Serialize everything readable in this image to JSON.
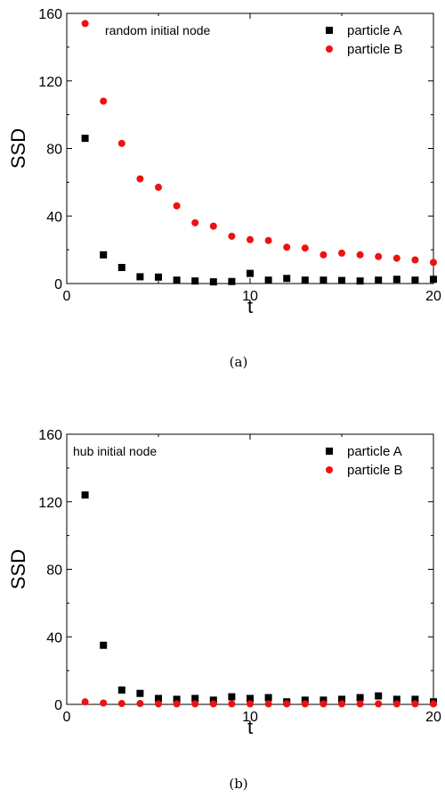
{
  "colors": {
    "particle_a": "#000000",
    "particle_b": "#ee1111",
    "axis": "#000000",
    "background": "#ffffff"
  },
  "chart_data": [
    {
      "type": "scatter",
      "caption": "(a)",
      "annotation": "random initial node",
      "xlabel": "t",
      "ylabel": "SSD",
      "xlim": [
        0,
        20
      ],
      "ylim": [
        0,
        160
      ],
      "xticks": [
        0,
        10,
        20
      ],
      "yticks": [
        0,
        40,
        80,
        120,
        160
      ],
      "grid": false,
      "legend_position": "top-right",
      "x": [
        1,
        2,
        3,
        4,
        5,
        6,
        7,
        8,
        9,
        10,
        11,
        12,
        13,
        14,
        15,
        16,
        17,
        18,
        19,
        20
      ],
      "series": [
        {
          "name": "particle A",
          "marker": "square",
          "color": "#000000",
          "values": [
            86,
            17,
            9.5,
            4,
            3.8,
            2,
            1.5,
            1,
            1.2,
            6,
            2,
            3,
            2,
            2,
            1.8,
            1.5,
            2,
            2.5,
            2,
            2.5
          ]
        },
        {
          "name": "particle B",
          "marker": "circle",
          "color": "#ee1111",
          "values": [
            154,
            108,
            83,
            62,
            57,
            46,
            36,
            34,
            28,
            26,
            25.5,
            21.5,
            21,
            17,
            18,
            17,
            16,
            15,
            14,
            12.5
          ]
        }
      ]
    },
    {
      "type": "scatter",
      "caption": "(b)",
      "annotation": "hub initial node",
      "xlabel": "t",
      "ylabel": "SSD",
      "xlim": [
        0,
        20
      ],
      "ylim": [
        0,
        160
      ],
      "xticks": [
        0,
        10,
        20
      ],
      "yticks": [
        0,
        40,
        80,
        120,
        160
      ],
      "grid": false,
      "legend_position": "top-right",
      "x": [
        1,
        2,
        3,
        4,
        5,
        6,
        7,
        8,
        9,
        10,
        11,
        12,
        13,
        14,
        15,
        16,
        17,
        18,
        19,
        20
      ],
      "series": [
        {
          "name": "particle A",
          "marker": "square",
          "color": "#000000",
          "values": [
            124,
            35,
            8.5,
            6.5,
            3.5,
            3,
            3.5,
            2.5,
            4.5,
            3.5,
            4,
            1.5,
            2.5,
            2.5,
            3,
            4,
            5,
            3,
            3,
            1.5
          ]
        },
        {
          "name": "particle B",
          "marker": "circle",
          "color": "#ee1111",
          "values": [
            1.5,
            0.8,
            0.5,
            0.5,
            0.3,
            0.3,
            0.3,
            0.3,
            0.3,
            0.3,
            0.3,
            0.3,
            0.3,
            0.3,
            0.3,
            0.3,
            0.3,
            0.3,
            0.3,
            0.3
          ]
        }
      ]
    }
  ]
}
